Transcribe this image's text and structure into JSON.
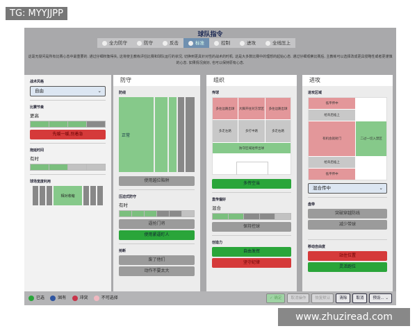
{
  "watermarks": {
    "top": "TG: MYYJJPP",
    "bottom": "www.zhuziread.com"
  },
  "title": "球队指令",
  "tabs": [
    {
      "label": "全力防守"
    },
    {
      "label": "防守"
    },
    {
      "label": "反击"
    },
    {
      "label": "标准",
      "active": true
    },
    {
      "label": "控制"
    },
    {
      "label": "进攻"
    },
    {
      "label": "全线压上"
    }
  ],
  "description": "这毫无疑问是所有比赛心态中最重要的. 通过仔细权衡得失, 这将使主教练评估比赛和球队运行的状况, 切换到更具针对性的战术的时机. 这是大多数比赛中的理想的起始心态. 通过仔细观察比赛后, 主教练可以选择改成更具侵略性或者更谨慎的心态. 如果情况良好, 也可以保持原有心态.",
  "left": {
    "style_label": "战术风格",
    "style_value": "自由",
    "tempo_label": "比赛节奏",
    "tempo_value": "更高",
    "tempo_level": 0.75,
    "tempo_button": "先缓一缓,别着急",
    "timewaste_label": "拖延时间",
    "timewaste_value": "有时",
    "timewaste_level": 0.5,
    "width_label": "球场宽度利用",
    "width_value": "相对收缩"
  },
  "defense": {
    "header": "防守",
    "line_label": "防线",
    "line_value": "正常",
    "offside_button": "使用越位陷阱",
    "press_label": "压迫式防守",
    "press_value": "有时",
    "press_level": 0.5,
    "press_buttons": [
      "逼抢门将",
      "使用紧逼盯人"
    ],
    "tackle_label": "抢断",
    "tackle_buttons": [
      "废了他们",
      "动作不要太大"
    ]
  },
  "organize": {
    "header": "组织",
    "pass_label": "传球",
    "top_row": [
      "多往边路出球",
      "大脚开往对方禁区",
      "多往边路出球"
    ],
    "mid_row": [
      "多走左路",
      "多打中路",
      "多走右路"
    ],
    "short_out": "防守区域短传出球",
    "space_button": "多传空当",
    "pass_pref_label": "直传偏好",
    "pass_pref_value": "混合",
    "pass_pref_level": 0.4,
    "possession_button": "保持控球",
    "creativity_label": "创造力",
    "creativity_buttons": [
      "自由发挥",
      "坚守纪律"
    ]
  },
  "attack": {
    "header": "进攻",
    "zone_label": "进攻区域",
    "cells": [
      "低平传中",
      "给背后插上",
      "有机会就射门",
      "二过一切入禁区",
      "给背后插上",
      "低平传中"
    ],
    "cross_value": "混合传中",
    "dribble_label": "盘带",
    "dribble_buttons": [
      "突破穿越防线",
      "减少带球"
    ],
    "move_label": "移动自由度",
    "move_buttons": [
      "站住位置",
      "灵活跑位"
    ]
  },
  "legend": [
    {
      "label": "已选",
      "color": "#2aa53a"
    },
    {
      "label": "固有",
      "color": "#2f55a0"
    },
    {
      "label": "冲突",
      "color": "#c8344a"
    },
    {
      "label": "不可选择",
      "color": "#f0b8c0"
    }
  ],
  "footer_buttons": [
    "确定",
    "取消操作",
    "恢复默认",
    "清除",
    "取消",
    "预设..."
  ]
}
